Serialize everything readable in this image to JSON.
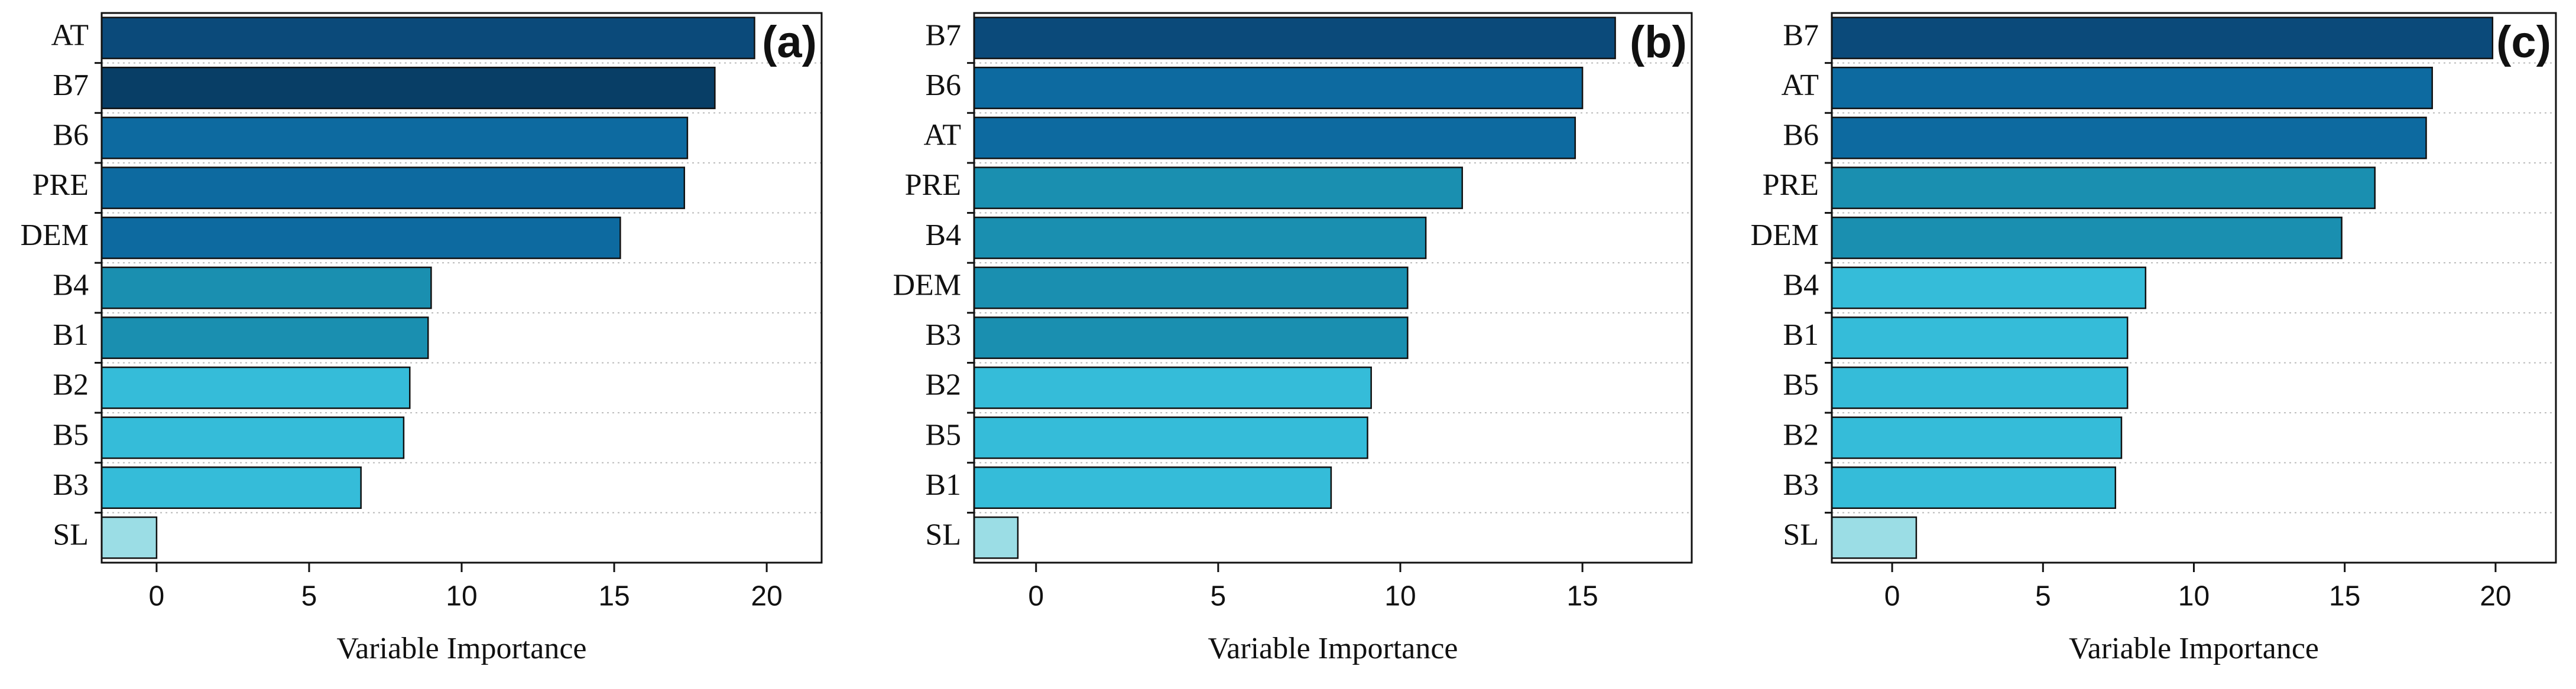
{
  "chart_data": [
    {
      "type": "bar",
      "orientation": "horizontal",
      "label": "(a)",
      "categories": [
        "AT",
        "B7",
        "B6",
        "PRE",
        "DEM",
        "B4",
        "B1",
        "B2",
        "B5",
        "B3",
        "SL"
      ],
      "values": [
        19.6,
        18.3,
        17.4,
        17.3,
        15.2,
        9.0,
        8.9,
        8.3,
        8.1,
        6.7,
        0.0
      ],
      "colors": [
        "#0b4a7a",
        "#083e66",
        "#0d6aa0",
        "#0d6aa0",
        "#0d6aa0",
        "#1a8fb0",
        "#1a8fb0",
        "#35bcd9",
        "#35bcd9",
        "#35bcd9",
        "#9bdde5"
      ],
      "xlabel": "Variable Importance",
      "xlim": [
        -1.8,
        21.8
      ],
      "xticks": [
        0,
        5,
        10,
        15,
        20
      ],
      "grid": true
    },
    {
      "type": "bar",
      "orientation": "horizontal",
      "label": "(b)",
      "categories": [
        "B7",
        "B6",
        "AT",
        "PRE",
        "B4",
        "DEM",
        "B3",
        "B2",
        "B5",
        "B1",
        "SL"
      ],
      "values": [
        15.9,
        15.0,
        14.8,
        11.7,
        10.7,
        10.2,
        10.2,
        9.2,
        9.1,
        8.1,
        -0.5
      ],
      "colors": [
        "#0b4a7a",
        "#0d6aa0",
        "#0d6aa0",
        "#1a8fb0",
        "#1a8fb0",
        "#1a8fb0",
        "#1a8fb0",
        "#35bcd9",
        "#35bcd9",
        "#35bcd9",
        "#9bdde5"
      ],
      "xlabel": "Variable Importance",
      "xlim": [
        -1.7,
        18.0
      ],
      "xticks": [
        0,
        5,
        10,
        15
      ],
      "grid": true
    },
    {
      "type": "bar",
      "orientation": "horizontal",
      "label": "(c)",
      "categories": [
        "B7",
        "AT",
        "B6",
        "PRE",
        "DEM",
        "B4",
        "B1",
        "B5",
        "B2",
        "B3",
        "SL"
      ],
      "values": [
        19.9,
        17.9,
        17.7,
        16.0,
        14.9,
        8.4,
        7.8,
        7.8,
        7.6,
        7.4,
        0.8
      ],
      "colors": [
        "#0b4a7a",
        "#0d6aa0",
        "#0d6aa0",
        "#1a8fb0",
        "#1a8fb0",
        "#35bcd9",
        "#35bcd9",
        "#35bcd9",
        "#35bcd9",
        "#35bcd9",
        "#9bdde5"
      ],
      "xlabel": "Variable Importance",
      "xlim": [
        -2.0,
        22.0
      ],
      "xticks": [
        0,
        5,
        10,
        15,
        20
      ],
      "grid": true
    }
  ]
}
